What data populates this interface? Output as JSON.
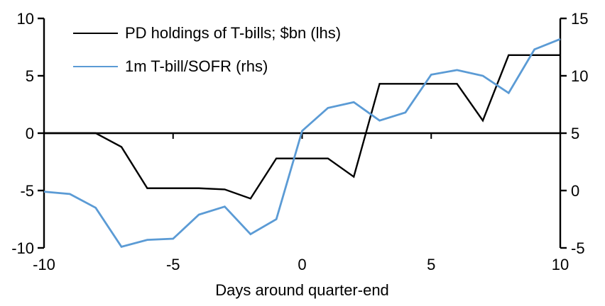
{
  "chart_data": {
    "type": "line",
    "title": "",
    "xlabel": "Days around quarter-end",
    "grid": false,
    "legend_position": "top-left",
    "x": [
      -10,
      -9,
      -8,
      -7,
      -6,
      -5,
      -4,
      -3,
      -2,
      -1,
      0,
      1,
      2,
      3,
      4,
      5,
      6,
      7,
      8,
      9,
      10
    ],
    "x_range": [
      -10,
      10
    ],
    "x_tick_labels": [
      -10,
      -5,
      0,
      5,
      10
    ],
    "x_tick_marks": [
      -5,
      0,
      5
    ],
    "left_axis": {
      "min": -10,
      "max": 10,
      "ticks": [
        10,
        5,
        0,
        -5,
        -10
      ]
    },
    "right_axis": {
      "min": -5,
      "max": 15,
      "ticks": [
        15,
        10,
        5,
        0,
        -5
      ]
    },
    "axis_color": "#000000",
    "series": [
      {
        "name": "PD holdings of T-bills; $bn (lhs)",
        "axis": "left",
        "color": "#000000",
        "values": [
          0,
          0,
          0,
          -1.2,
          -4.8,
          -4.8,
          -4.8,
          -4.9,
          -5.7,
          -2.2,
          -2.2,
          -2.2,
          -3.8,
          4.3,
          4.3,
          4.3,
          4.3,
          1.1,
          6.8,
          6.8,
          6.8
        ]
      },
      {
        "name": "1m T-bill/SOFR (rhs)",
        "axis": "right",
        "color": "#5B9BD5",
        "values": [
          -0.1,
          -0.3,
          -1.5,
          -4.9,
          -4.3,
          -4.2,
          -2.1,
          -1.4,
          -3.8,
          -2.5,
          5.2,
          7.2,
          7.7,
          6.1,
          6.8,
          10.1,
          10.5,
          10.0,
          8.5,
          12.3,
          13.2
        ]
      }
    ]
  }
}
